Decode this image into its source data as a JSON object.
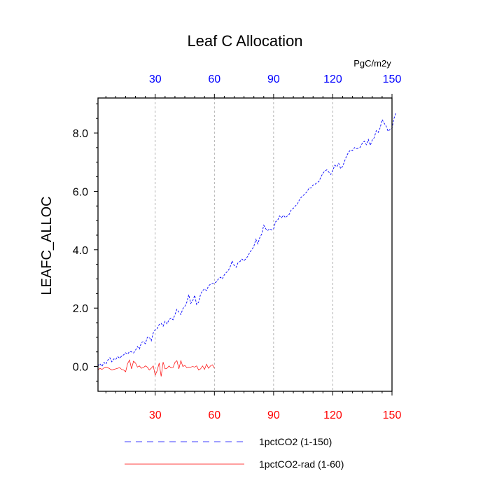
{
  "chart_data": {
    "type": "line",
    "title": "Leaf C Allocation",
    "units": "PgC/m2y",
    "ylabel": "LEAFC_ALLOC",
    "xlim": [
      1,
      150
    ],
    "ylim": [
      -0.85,
      9.2
    ],
    "x_ticks": [
      30,
      60,
      90,
      120,
      150
    ],
    "y_ticks": [
      {
        "value": 0,
        "label": "0.0"
      },
      {
        "value": 2,
        "label": "2.0"
      },
      {
        "value": 4,
        "label": "4.0"
      },
      {
        "value": 6,
        "label": "6.0"
      },
      {
        "value": 8,
        "label": "8.0"
      }
    ],
    "top_axis_color": "#0000ff",
    "bottom_axis_color": "#ff0000",
    "grid": "vertical dashed at x ticks",
    "legend_position": "bottom",
    "series": [
      {
        "name": "1pctCO2 (1-150)",
        "color": "#0000ff",
        "dash": "dashed",
        "x_start": 1,
        "values": [
          0.02,
          0.1,
          0.0,
          0.14,
          0.08,
          0.22,
          0.3,
          0.16,
          0.26,
          0.24,
          0.34,
          0.28,
          0.36,
          0.4,
          0.47,
          0.42,
          0.52,
          0.5,
          0.46,
          0.56,
          0.68,
          0.6,
          0.82,
          0.85,
          0.78,
          1.0,
          1.0,
          0.88,
          1.15,
          1.26,
          1.3,
          1.44,
          1.48,
          1.38,
          1.55,
          1.46,
          1.6,
          1.66,
          1.6,
          1.78,
          1.96,
          1.86,
          1.78,
          1.98,
          2.06,
          2.2,
          2.46,
          2.16,
          2.25,
          2.44,
          2.12,
          2.2,
          2.48,
          2.6,
          2.66,
          2.6,
          2.76,
          2.82,
          2.84,
          2.86,
          2.9,
          3.0,
          3.06,
          3.0,
          3.14,
          3.22,
          3.28,
          3.42,
          3.62,
          3.46,
          3.4,
          3.56,
          3.6,
          3.68,
          3.62,
          3.7,
          3.78,
          3.92,
          4.0,
          4.12,
          4.36,
          4.2,
          4.42,
          4.54,
          4.84,
          4.72,
          4.66,
          4.72,
          4.68,
          4.72,
          4.96,
          5.0,
          5.16,
          5.1,
          5.18,
          5.1,
          5.16,
          5.22,
          5.38,
          5.42,
          5.5,
          5.56,
          5.7,
          5.8,
          5.86,
          5.92,
          6.0,
          6.12,
          6.12,
          6.22,
          6.24,
          6.3,
          6.34,
          6.5,
          6.62,
          6.7,
          6.74,
          6.66,
          6.58,
          6.72,
          6.9,
          6.84,
          6.96,
          6.78,
          6.86,
          7.04,
          7.22,
          7.34,
          7.42,
          7.4,
          7.5,
          7.46,
          7.48,
          7.52,
          7.66,
          7.72,
          7.6,
          7.78,
          7.58,
          7.76,
          7.84,
          8.08,
          8.02,
          8.18,
          8.46,
          8.34,
          8.24,
          8.06,
          8.12,
          8.16,
          8.5,
          8.7
        ]
      },
      {
        "name": "1pctCO2-rad (1-60)",
        "color": "#ff0000",
        "dash": "solid",
        "x_start": 1,
        "values": [
          -0.12,
          -0.06,
          -0.1,
          -0.05,
          -0.02,
          -0.04,
          -0.08,
          -0.12,
          -0.1,
          -0.08,
          -0.06,
          -0.04,
          -0.1,
          -0.12,
          -0.18,
          0.1,
          0.22,
          -0.08,
          0.18,
          0.12,
          -0.02,
          0.02,
          -0.06,
          -0.04,
          0.02,
          -0.02,
          -0.12,
          -0.06,
          0.02,
          -0.3,
          -0.14,
          0.12,
          -0.34,
          0.15,
          -0.08,
          -0.06,
          0.02,
          -0.05,
          -0.04,
          0.14,
          0.2,
          -0.08,
          0.2,
          0.0,
          0.04,
          -0.04,
          -0.02,
          -0.02,
          0.0,
          -0.02,
          0.02,
          -0.12,
          -0.08,
          0.02,
          -0.1,
          0.08,
          -0.06,
          0.02,
          0.06,
          -0.06
        ]
      }
    ]
  }
}
